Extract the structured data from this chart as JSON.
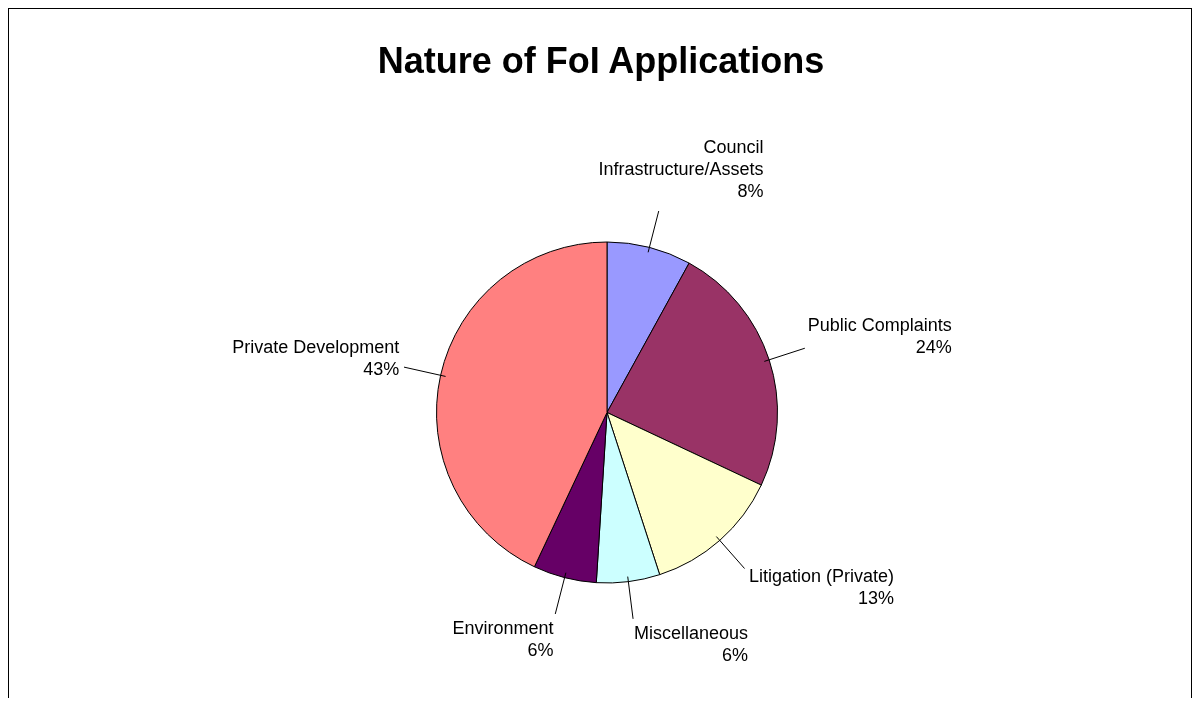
{
  "chart_data": {
    "type": "pie",
    "title": "Nature of FoI Applications",
    "categories": [
      "Council Infrastructure/Assets",
      "Public Complaints",
      "Litigation (Private)",
      "Miscellaneous",
      "Environment",
      "Private Development"
    ],
    "values": [
      8,
      24,
      13,
      6,
      6,
      43
    ],
    "value_labels": [
      "8%",
      "24%",
      "13%",
      "6%",
      "6%",
      "43%"
    ],
    "colors": [
      "#9999ff",
      "#993366",
      "#ffffcc",
      "#ccffff",
      "#660066",
      "#ff8080"
    ],
    "legend": false
  }
}
